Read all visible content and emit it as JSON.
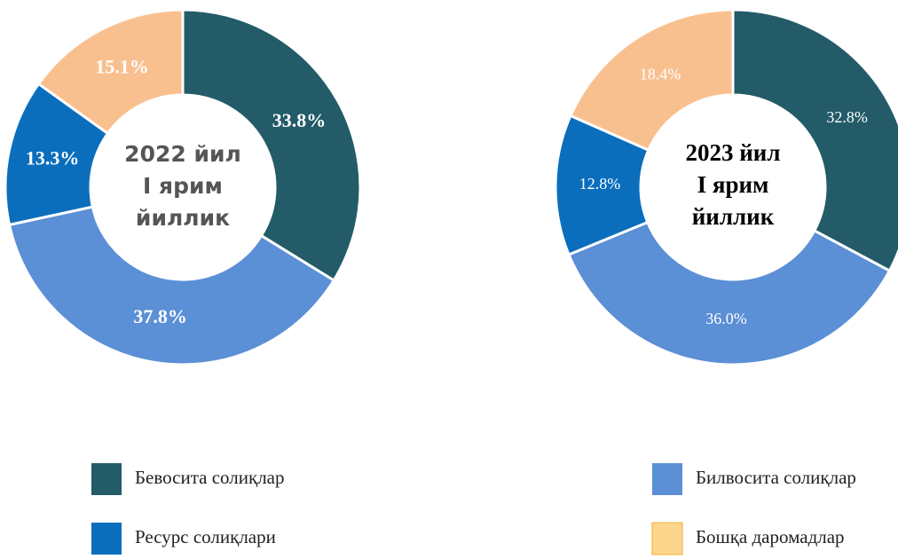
{
  "chart_data": [
    {
      "type": "pie",
      "values": [
        33.8,
        37.8,
        13.3,
        15.1
      ],
      "value_labels": [
        "33.8%",
        "37.8%",
        "13.3%",
        "15.1%"
      ],
      "center_label": [
        "2022 йил",
        "I ярим",
        "йиллик"
      ]
    },
    {
      "type": "pie",
      "values": [
        32.8,
        36.0,
        12.8,
        18.4
      ],
      "value_labels": [
        "32.8%",
        "36.0%",
        "12.8%",
        "18.4%"
      ],
      "center_label": [
        "2023 йил",
        "I ярим",
        "йиллик"
      ]
    }
  ],
  "legend": {
    "items": [
      "Бевосита солиқлар",
      "Билвосита солиқлар",
      "Ресурс солиқлари",
      "Бошқа даромадлар"
    ],
    "colors": [
      "#235b69",
      "#5b8fd6",
      "#0a6ebd",
      "#f9c08f"
    ]
  }
}
